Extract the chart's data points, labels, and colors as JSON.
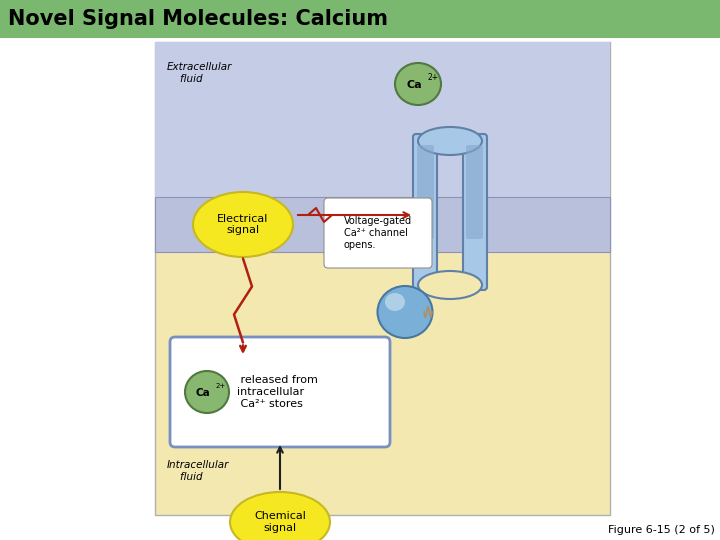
{
  "title": "Novel Signal Molecules: Calcium",
  "title_bg": "#7ab870",
  "title_color": "black",
  "title_fontsize": 15,
  "fig_bg": "white",
  "extracellular_bg": "#c5cce5",
  "intracellular_bg": "#f2e8b0",
  "membrane_color": "#b8c0dc",
  "membrane_border": "#9090b8",
  "electrical_signal_color": "#f5e820",
  "electrical_signal_border": "#c8b820",
  "chemical_signal_color": "#f5e820",
  "chemical_signal_border": "#c8b820",
  "ca_ion_color": "#88b870",
  "ca_ion_border": "#507840",
  "channel_color": "#a8c8e8",
  "channel_dark": "#88a8cc",
  "channel_border": "#6080a8",
  "arrow_color": "#b02010",
  "black_arrow_color": "#202020",
  "vesicle_color": "#7ab0d8",
  "vesicle_border": "#4878a0",
  "box_border": "#7890c0",
  "box_bg": "white",
  "outer_border": "#b0b0b0",
  "label_extracellular": "Extracellular\n    fluid",
  "label_intracellular": "Intracellular\n    fluid",
  "label_electrical": "Electrical\nsignal",
  "label_chemical": "Chemical\nsignal",
  "label_voltage": "Voltage-gated\nCa²⁺ channel\nopens.",
  "label_ca_released": " released from\nintracellular\n Ca²⁺ stores",
  "figure_caption": "Figure 6-15 (2 of 5)"
}
